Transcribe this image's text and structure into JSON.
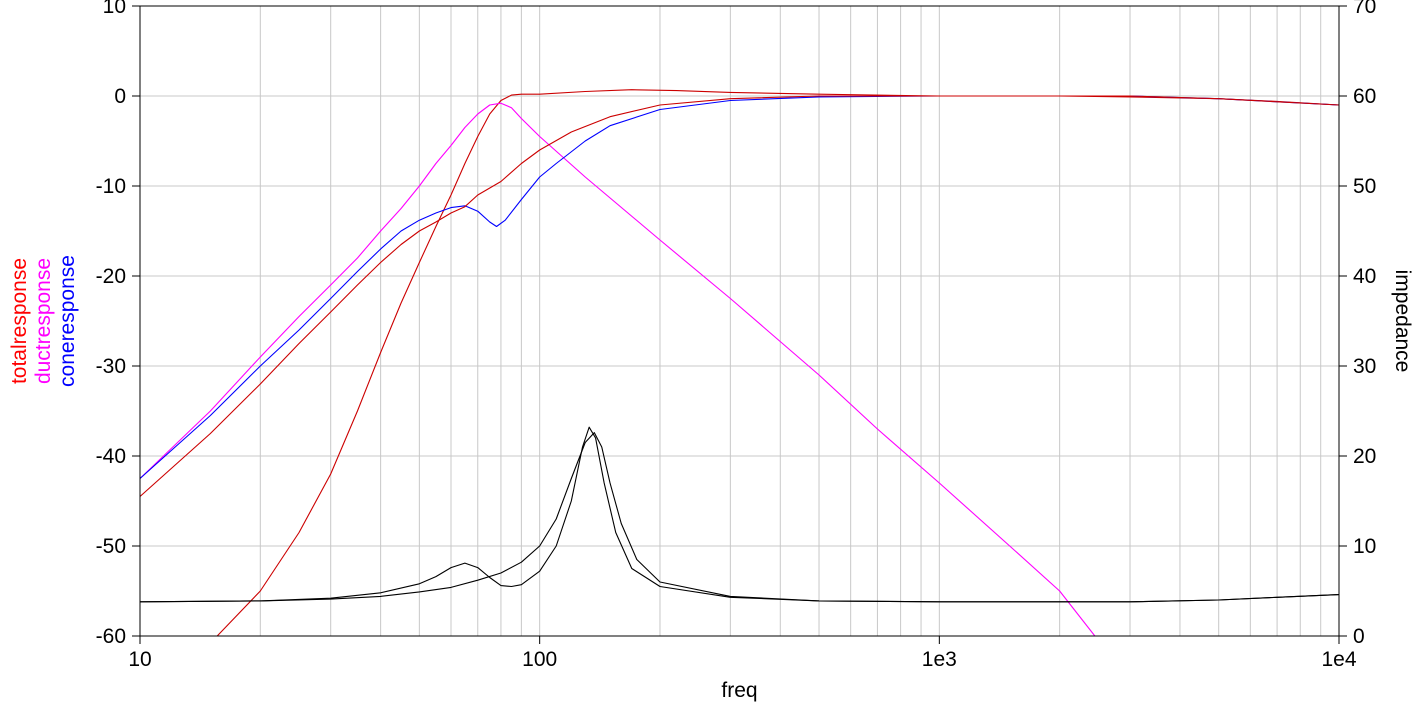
{
  "chart_data": {
    "type": "line",
    "x_scale": "log",
    "xlabel": "freq",
    "xlim": [
      10,
      10000
    ],
    "x_ticks": [
      {
        "value": 10,
        "label": "10"
      },
      {
        "value": 100,
        "label": "100"
      },
      {
        "value": 1000,
        "label": "1e3"
      },
      {
        "value": 10000,
        "label": "1e4"
      }
    ],
    "y_left": {
      "lim": [
        -60,
        10
      ],
      "ticks": [
        "10",
        "0",
        "-10",
        "-20",
        "-30",
        "-40",
        "-50",
        "-60"
      ],
      "labels": [
        {
          "text": "totalresponse",
          "color": "#ff0000"
        },
        {
          "text": "ductresponse",
          "color": "#ff00ff"
        },
        {
          "text": "coneresponse",
          "color": "#0000ff"
        }
      ]
    },
    "y_right": {
      "label": "impedance",
      "lim": [
        0,
        70
      ],
      "ticks": [
        "70",
        "60",
        "50",
        "40",
        "30",
        "20",
        "10",
        "0"
      ]
    },
    "grid": true,
    "series": [
      {
        "name": "totalresponse",
        "color": "#cc0000",
        "axis": "left",
        "points": [
          [
            15.6,
            -60
          ],
          [
            20,
            -55
          ],
          [
            25,
            -48.5
          ],
          [
            30,
            -42
          ],
          [
            35,
            -35
          ],
          [
            40,
            -28.5
          ],
          [
            45,
            -23
          ],
          [
            50,
            -18.5
          ],
          [
            55,
            -14.5
          ],
          [
            60,
            -11
          ],
          [
            65,
            -7.5
          ],
          [
            70,
            -4.5
          ],
          [
            75,
            -2
          ],
          [
            80,
            -0.5
          ],
          [
            85,
            0.1
          ],
          [
            90,
            0.2
          ],
          [
            100,
            0.2
          ],
          [
            130,
            0.5
          ],
          [
            170,
            0.7
          ],
          [
            220,
            0.6
          ],
          [
            300,
            0.4
          ],
          [
            500,
            0.2
          ],
          [
            1000,
            0
          ],
          [
            2000,
            0
          ],
          [
            3000,
            -0.1
          ],
          [
            5000,
            -0.3
          ],
          [
            7000,
            -0.6
          ],
          [
            10000,
            -1
          ]
        ]
      },
      {
        "name": "ductresponse",
        "color": "#ff00ff",
        "axis": "left",
        "points": [
          [
            10,
            -42.5
          ],
          [
            15,
            -35
          ],
          [
            20,
            -29
          ],
          [
            25,
            -24.5
          ],
          [
            30,
            -21
          ],
          [
            35,
            -18
          ],
          [
            40,
            -15
          ],
          [
            45,
            -12.5
          ],
          [
            50,
            -10
          ],
          [
            55,
            -7.5
          ],
          [
            60,
            -5.5
          ],
          [
            65,
            -3.5
          ],
          [
            70,
            -2
          ],
          [
            75,
            -1
          ],
          [
            80,
            -0.8
          ],
          [
            85,
            -1.3
          ],
          [
            90,
            -2.5
          ],
          [
            100,
            -4.5
          ],
          [
            130,
            -9
          ],
          [
            200,
            -16
          ],
          [
            300,
            -22.5
          ],
          [
            500,
            -31
          ],
          [
            700,
            -37
          ],
          [
            1000,
            -43
          ],
          [
            1500,
            -50
          ],
          [
            2000,
            -55
          ],
          [
            2450,
            -60
          ]
        ]
      },
      {
        "name": "coneresponse",
        "color": "#0000ff",
        "axis": "left",
        "points": [
          [
            10,
            -42.5
          ],
          [
            15,
            -35.5
          ],
          [
            20,
            -30
          ],
          [
            25,
            -26
          ],
          [
            30,
            -22.5
          ],
          [
            35,
            -19.5
          ],
          [
            40,
            -17
          ],
          [
            45,
            -15
          ],
          [
            50,
            -13.8
          ],
          [
            55,
            -13
          ],
          [
            60,
            -12.4
          ],
          [
            65,
            -12.2
          ],
          [
            70,
            -12.8
          ],
          [
            75,
            -14
          ],
          [
            78,
            -14.5
          ],
          [
            82,
            -13.8
          ],
          [
            90,
            -11.5
          ],
          [
            100,
            -9
          ],
          [
            110,
            -7.5
          ],
          [
            130,
            -5
          ],
          [
            150,
            -3.3
          ],
          [
            200,
            -1.5
          ],
          [
            300,
            -0.5
          ],
          [
            500,
            -0.1
          ],
          [
            1000,
            0
          ],
          [
            3000,
            0
          ],
          [
            5000,
            -0.3
          ],
          [
            10000,
            -1
          ]
        ]
      },
      {
        "name": "totalresponse",
        "color": "#cc0000",
        "axis": "left",
        "points": [
          [
            10,
            -44.5
          ],
          [
            15,
            -37.5
          ],
          [
            20,
            -32
          ],
          [
            25,
            -27.5
          ],
          [
            30,
            -24
          ],
          [
            35,
            -21
          ],
          [
            40,
            -18.5
          ],
          [
            45,
            -16.5
          ],
          [
            50,
            -15
          ],
          [
            55,
            -14
          ],
          [
            60,
            -13
          ],
          [
            65,
            -12.3
          ],
          [
            70,
            -11
          ],
          [
            80,
            -9.5
          ],
          [
            90,
            -7.5
          ],
          [
            100,
            -6
          ],
          [
            120,
            -4
          ],
          [
            150,
            -2.3
          ],
          [
            200,
            -1
          ],
          [
            300,
            -0.3
          ],
          [
            500,
            0
          ],
          [
            1000,
            0
          ],
          [
            3000,
            0
          ],
          [
            5000,
            -0.3
          ],
          [
            10000,
            -1
          ]
        ]
      },
      {
        "name": "impedance",
        "color": "#000000",
        "axis": "right",
        "points": [
          [
            10,
            3.8
          ],
          [
            20,
            3.9
          ],
          [
            30,
            4.2
          ],
          [
            40,
            4.8
          ],
          [
            50,
            5.8
          ],
          [
            55,
            6.6
          ],
          [
            60,
            7.6
          ],
          [
            65,
            8.1
          ],
          [
            70,
            7.6
          ],
          [
            75,
            6.5
          ],
          [
            80,
            5.6
          ],
          [
            85,
            5.5
          ],
          [
            90,
            5.7
          ],
          [
            100,
            7.2
          ],
          [
            110,
            10
          ],
          [
            120,
            15
          ],
          [
            128,
            21
          ],
          [
            133,
            23.2
          ],
          [
            138,
            22
          ],
          [
            145,
            17
          ],
          [
            155,
            11.5
          ],
          [
            170,
            7.5
          ],
          [
            200,
            5.5
          ],
          [
            300,
            4.3
          ],
          [
            500,
            3.9
          ],
          [
            1000,
            3.8
          ],
          [
            3000,
            3.8
          ],
          [
            5000,
            4.0
          ],
          [
            7000,
            4.3
          ],
          [
            10000,
            4.6
          ]
        ]
      },
      {
        "name": "impedance",
        "color": "#000000",
        "axis": "right",
        "points": [
          [
            10,
            3.8
          ],
          [
            20,
            3.9
          ],
          [
            30,
            4.1
          ],
          [
            40,
            4.4
          ],
          [
            50,
            4.9
          ],
          [
            60,
            5.4
          ],
          [
            70,
            6.2
          ],
          [
            80,
            7.0
          ],
          [
            90,
            8.2
          ],
          [
            100,
            10
          ],
          [
            110,
            13
          ],
          [
            120,
            17.5
          ],
          [
            130,
            21.5
          ],
          [
            137,
            22.6
          ],
          [
            143,
            21
          ],
          [
            150,
            17
          ],
          [
            160,
            12.5
          ],
          [
            175,
            8.5
          ],
          [
            200,
            6
          ],
          [
            300,
            4.4
          ],
          [
            500,
            3.9
          ],
          [
            1000,
            3.8
          ],
          [
            3000,
            3.8
          ],
          [
            5000,
            4.0
          ],
          [
            7000,
            4.3
          ],
          [
            10000,
            4.6
          ]
        ]
      },
      {
        "name": "coneresponse",
        "color": "#0000ff",
        "axis": "left",
        "points": [
          [
            10,
            -60
          ],
          [
            10000,
            -60
          ]
        ]
      }
    ]
  }
}
